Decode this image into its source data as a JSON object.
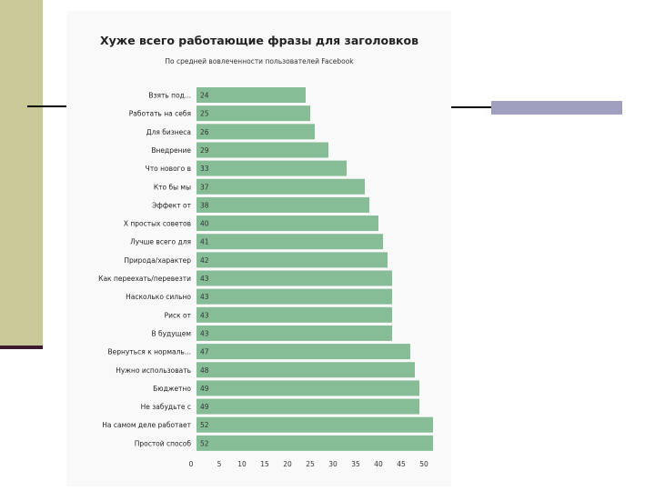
{
  "colors": {
    "bar": "#86bd96",
    "sidebar": "#c9c899",
    "sidebar_line": "#3d1b2c",
    "accent_block": "#a09fc0"
  },
  "chart_data": {
    "type": "bar",
    "orientation": "horizontal",
    "title": "Хуже всего работающие фразы для заголовков",
    "subtitle": "По средней вовлеченности пользователей Facebook",
    "xlabel": "",
    "ylabel": "",
    "xlim": [
      0,
      52
    ],
    "xticks": [
      0,
      5,
      10,
      15,
      20,
      25,
      30,
      35,
      40,
      45,
      50
    ],
    "grid": false,
    "categories": [
      "Взять под...",
      "Работать на себя",
      "Для бизнеса",
      "Внедрение",
      "Что нового в",
      "Кто бы мы",
      "Эффект от",
      "X простых советов",
      "Лучше всего для",
      "Природа/характер",
      "Как переехать/перевезти",
      "Насколько сильно",
      "Риск от",
      "В будущем",
      "Вернуться к нормаль...",
      "Нужно использовать",
      "Бюджетно",
      "Не забудьте с",
      "На самом деле работает",
      "Простой способ"
    ],
    "values": [
      24,
      25,
      26,
      29,
      33,
      37,
      38,
      40,
      41,
      42,
      43,
      43,
      43,
      43,
      47,
      48,
      49,
      49,
      52,
      52
    ]
  }
}
